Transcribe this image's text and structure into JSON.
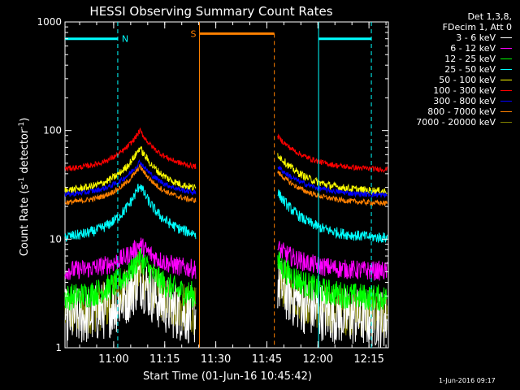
{
  "chart_data": {
    "type": "line",
    "title": "HESSI Observing Summary Count Rates",
    "xlabel": "Start Time (01-Jun-16 10:45:42)",
    "ylabel_parts": [
      "Count Rate (s",
      "-1",
      " detector",
      "-1",
      ")"
    ],
    "yscale": "log",
    "ylim": [
      1,
      1000
    ],
    "xlim_minutes_after_start": [
      0,
      95
    ],
    "xtick_labels": [
      "11:00",
      "11:15",
      "11:30",
      "11:45",
      "12:00",
      "12:15"
    ],
    "xtick_minutes": [
      14.3,
      29.3,
      44.3,
      59.3,
      74.3,
      89.3
    ],
    "ytick_labels": [
      "1",
      "10",
      "100",
      "1000"
    ],
    "ytick_values": [
      1,
      10,
      100,
      1000
    ],
    "gaps_minutes": [
      [
        38.5,
        62.5
      ]
    ],
    "series": [
      {
        "name": "3 - 6 keV",
        "color": "#ffffff",
        "base": 1.8,
        "peak": 4.5,
        "noise": 0.55
      },
      {
        "name": "6 - 12 keV",
        "color": "#ff00ff",
        "base": 5.0,
        "peak": 9.0,
        "noise": 0.18
      },
      {
        "name": "12 - 25 keV",
        "color": "#00ff00",
        "base": 2.8,
        "peak": 7.0,
        "noise": 0.25
      },
      {
        "name": "25 - 50 keV",
        "color": "#00ffff",
        "base": 10.0,
        "peak": 32.0,
        "noise": 0.1
      },
      {
        "name": "50 - 100 keV",
        "color": "#ffff00",
        "base": 27.0,
        "peak": 70.0,
        "noise": 0.07
      },
      {
        "name": "100 - 300 keV",
        "color": "#ff0000",
        "base": 43.0,
        "peak": 100.0,
        "noise": 0.05
      },
      {
        "name": "300 - 800 keV",
        "color": "#0000ff",
        "base": 25.0,
        "peak": 52.0,
        "noise": 0.05
      },
      {
        "name": "800 - 7000 keV",
        "color": "#ff8000",
        "base": 21.0,
        "peak": 47.0,
        "noise": 0.05
      },
      {
        "name": "7000 - 20000 keV",
        "color": "#808000",
        "base": 2.0,
        "peak": 5.0,
        "noise": 0.45
      }
    ],
    "annotations": [
      {
        "label": "N",
        "color": "#00ffff",
        "start": 0,
        "end": 15.5,
        "level": 700
      },
      {
        "label": "N",
        "color": "#00ffff",
        "start": 74.5,
        "end": 90,
        "level": 700
      },
      {
        "label": "S",
        "color": "#ff8000",
        "start": 39.5,
        "end": 61.5,
        "level": 780
      }
    ],
    "legend_header": [
      "Det 1,3,8,",
      "FDecim 1, Att 0"
    ]
  },
  "timestamp": "1-Jun-2016 09:17"
}
